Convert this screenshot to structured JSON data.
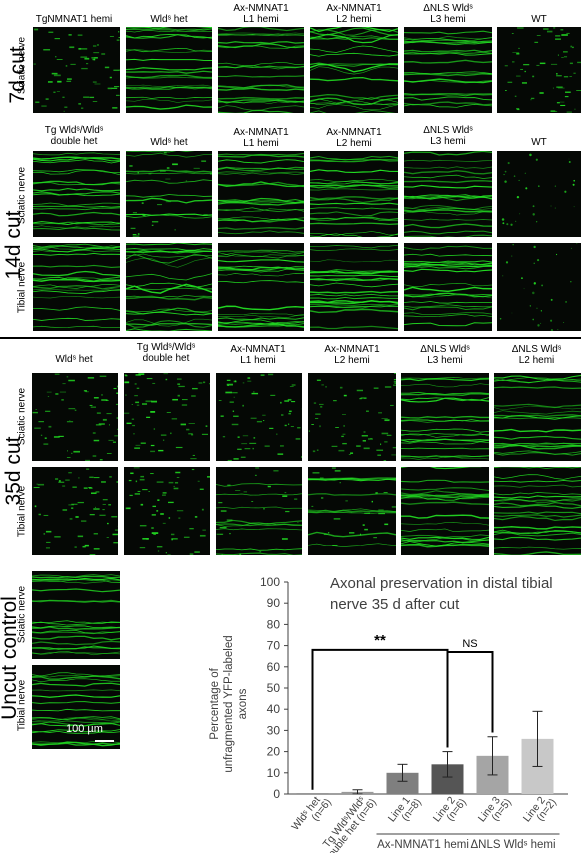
{
  "sections": {
    "cut7d": {
      "label": "7d cut",
      "rows": [
        {
          "label": "Sciatic nerve"
        }
      ],
      "columns": [
        "TgNMNAT1  hemi",
        "Wldˢ het",
        "Ax-NMNAT1\nL1 hemi",
        "Ax-NMNAT1\nL2 hemi",
        "ΔNLS Wldˢ\nL3 hemi",
        "WT"
      ]
    },
    "cut14d": {
      "label": "14d cut",
      "rows": [
        {
          "label": "Sciatic nerve"
        },
        {
          "label": "Tibial nerve"
        }
      ],
      "columns": [
        "Tg Wldˢ/Wldˢ\ndouble het",
        "Wldˢ het",
        "Ax-NMNAT1\nL1 hemi",
        "Ax-NMNAT1\nL2 hemi",
        "ΔNLS Wldˢ\nL3 hemi",
        "WT"
      ]
    },
    "cut35d": {
      "label": "35d cut",
      "rows": [
        {
          "label": "Sciatic nerve"
        },
        {
          "label": "Tibial nerve"
        }
      ],
      "columns": [
        "Wldˢ het",
        "Tg Wldˢ/Wldˢ\ndouble het",
        "Ax-NMNAT1\nL1 hemi",
        "Ax-NMNAT1\nL2 hemi",
        "ΔNLS Wldˢ\nL3 hemi",
        "ΔNLS Wldˢ\nL2 hemi"
      ]
    },
    "uncut": {
      "label": "Uncut control",
      "rows": [
        {
          "label": "Sciatic nerve"
        },
        {
          "label": "Tibial nerve"
        }
      ],
      "scalebar": "100 µm"
    }
  },
  "colors": {
    "axon_green": "#22dd22",
    "panel_bg": "#050805",
    "bar_dark": "#555555",
    "bar_mid": "#7f7f7f",
    "bar_light": "#c8c8c8"
  },
  "chart_data": {
    "type": "bar",
    "title": "Axonal preservation in distal tibial nerve 35 d after cut",
    "ylabel": "Percentage of unfragmented YFP-labeled axons",
    "ylim": [
      0,
      100
    ],
    "yticks": [
      0,
      10,
      20,
      30,
      40,
      50,
      60,
      70,
      80,
      90,
      100
    ],
    "categories": [
      "Wldˢ het (n=6)",
      "Tg Wldˢ/Wldˢ double het (n=6)",
      "Line 1 (n=8)",
      "Line 2 (n=6)",
      "Line 3 (n=5)",
      "Line 2 (n=2)"
    ],
    "tick_labels": [
      [
        "Wldˢ het",
        "(n=6)"
      ],
      [
        "Tg Wldˢ/Wldˢ",
        "double het (n=6)"
      ],
      [
        "Line 1",
        "(n=8)"
      ],
      [
        "Line 2",
        "(n=6)"
      ],
      [
        "Line 3",
        "(n=5)"
      ],
      [
        "Line 2",
        "(n=2)"
      ]
    ],
    "values": [
      0,
      1,
      10,
      14,
      18,
      26
    ],
    "errors": [
      0,
      1,
      4,
      6,
      9,
      13
    ],
    "bar_colors": [
      "#7f7f7f",
      "#9a9a9a",
      "#7f7f7f",
      "#555555",
      "#a5a5a5",
      "#c8c8c8"
    ],
    "groups": [
      {
        "label": "Ax-NMNAT1 hemi",
        "from": 2,
        "to": 3
      },
      {
        "label": "ΔNLS Wldˢ hemi",
        "from": 4,
        "to": 5
      }
    ],
    "significance": [
      {
        "label": "**",
        "from": 0,
        "to": 3
      },
      {
        "label": "NS",
        "from": 3,
        "to": 4
      }
    ]
  }
}
